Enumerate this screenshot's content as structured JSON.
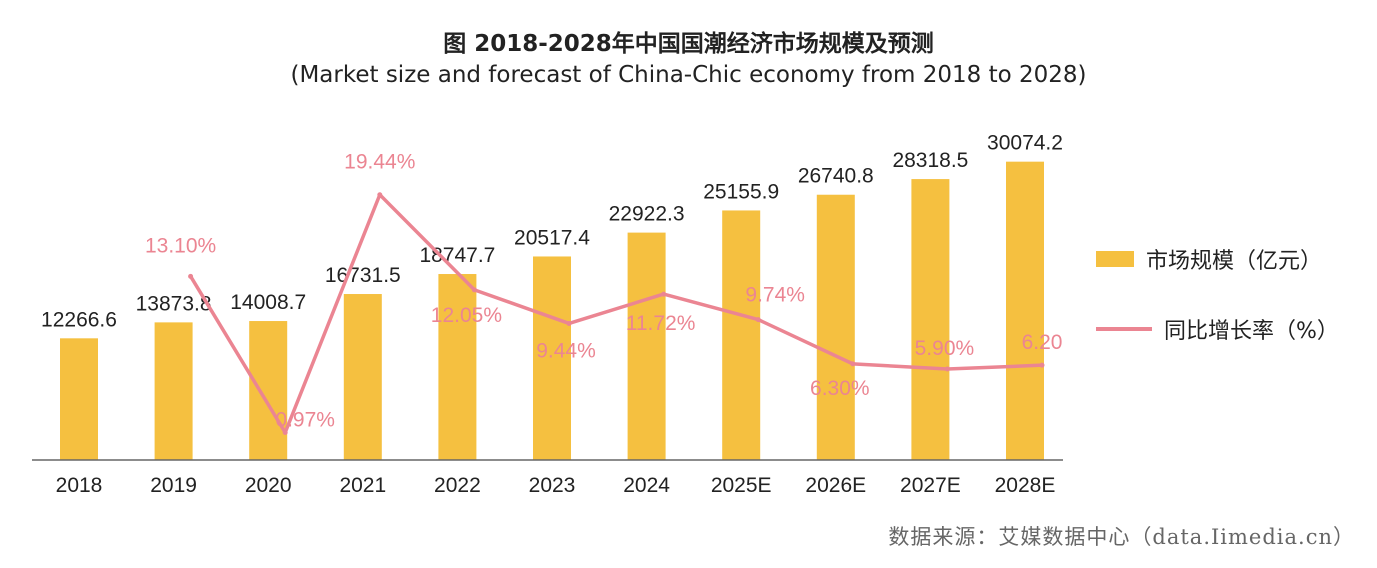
{
  "title": "图 2018-2028年中国国潮经济市场规模及预测",
  "subtitle": "(Market size and forecast of China-Chic economy from 2018 to 2028)",
  "source": "数据来源：艾媒数据中心（data.Iimedia.cn）",
  "colors": {
    "bar": "#F5C040",
    "line": "#EB8592",
    "bar_label": "#222222",
    "line_label": "#EB8592",
    "axis": "#666666"
  },
  "chart_data": {
    "type": "bar",
    "categories": [
      "2018",
      "2019",
      "2020",
      "2021",
      "2022",
      "2023",
      "2024",
      "2025E",
      "2026E",
      "2027E",
      "2028E"
    ],
    "series": [
      {
        "name": "市场规模（亿元）",
        "type": "bar",
        "axis": "left",
        "values": [
          12266.6,
          13873.8,
          14008.7,
          16731.5,
          18747.7,
          20517.4,
          22922.3,
          25155.9,
          26740.8,
          28318.5,
          30074.2
        ],
        "labels": [
          "12266.6",
          "13873.8",
          "14008.7",
          "16731.5",
          "18747.7",
          "20517.4",
          "22922.3",
          "25155.9",
          "26740.8",
          "28318.5",
          "30074.2"
        ]
      },
      {
        "name": "同比增长率（%）",
        "type": "line",
        "axis": "right",
        "values": [
          null,
          13.1,
          0.97,
          19.44,
          12.05,
          9.44,
          11.72,
          9.74,
          6.3,
          5.9,
          6.2
        ],
        "labels": [
          null,
          "13.10%",
          "0.97%",
          "19.44%",
          "12.05%",
          "9.44%",
          "11.72%",
          "9.74%",
          "6.30%",
          "5.90%",
          "6.20"
        ]
      }
    ],
    "legend": "right",
    "grid": false
  }
}
